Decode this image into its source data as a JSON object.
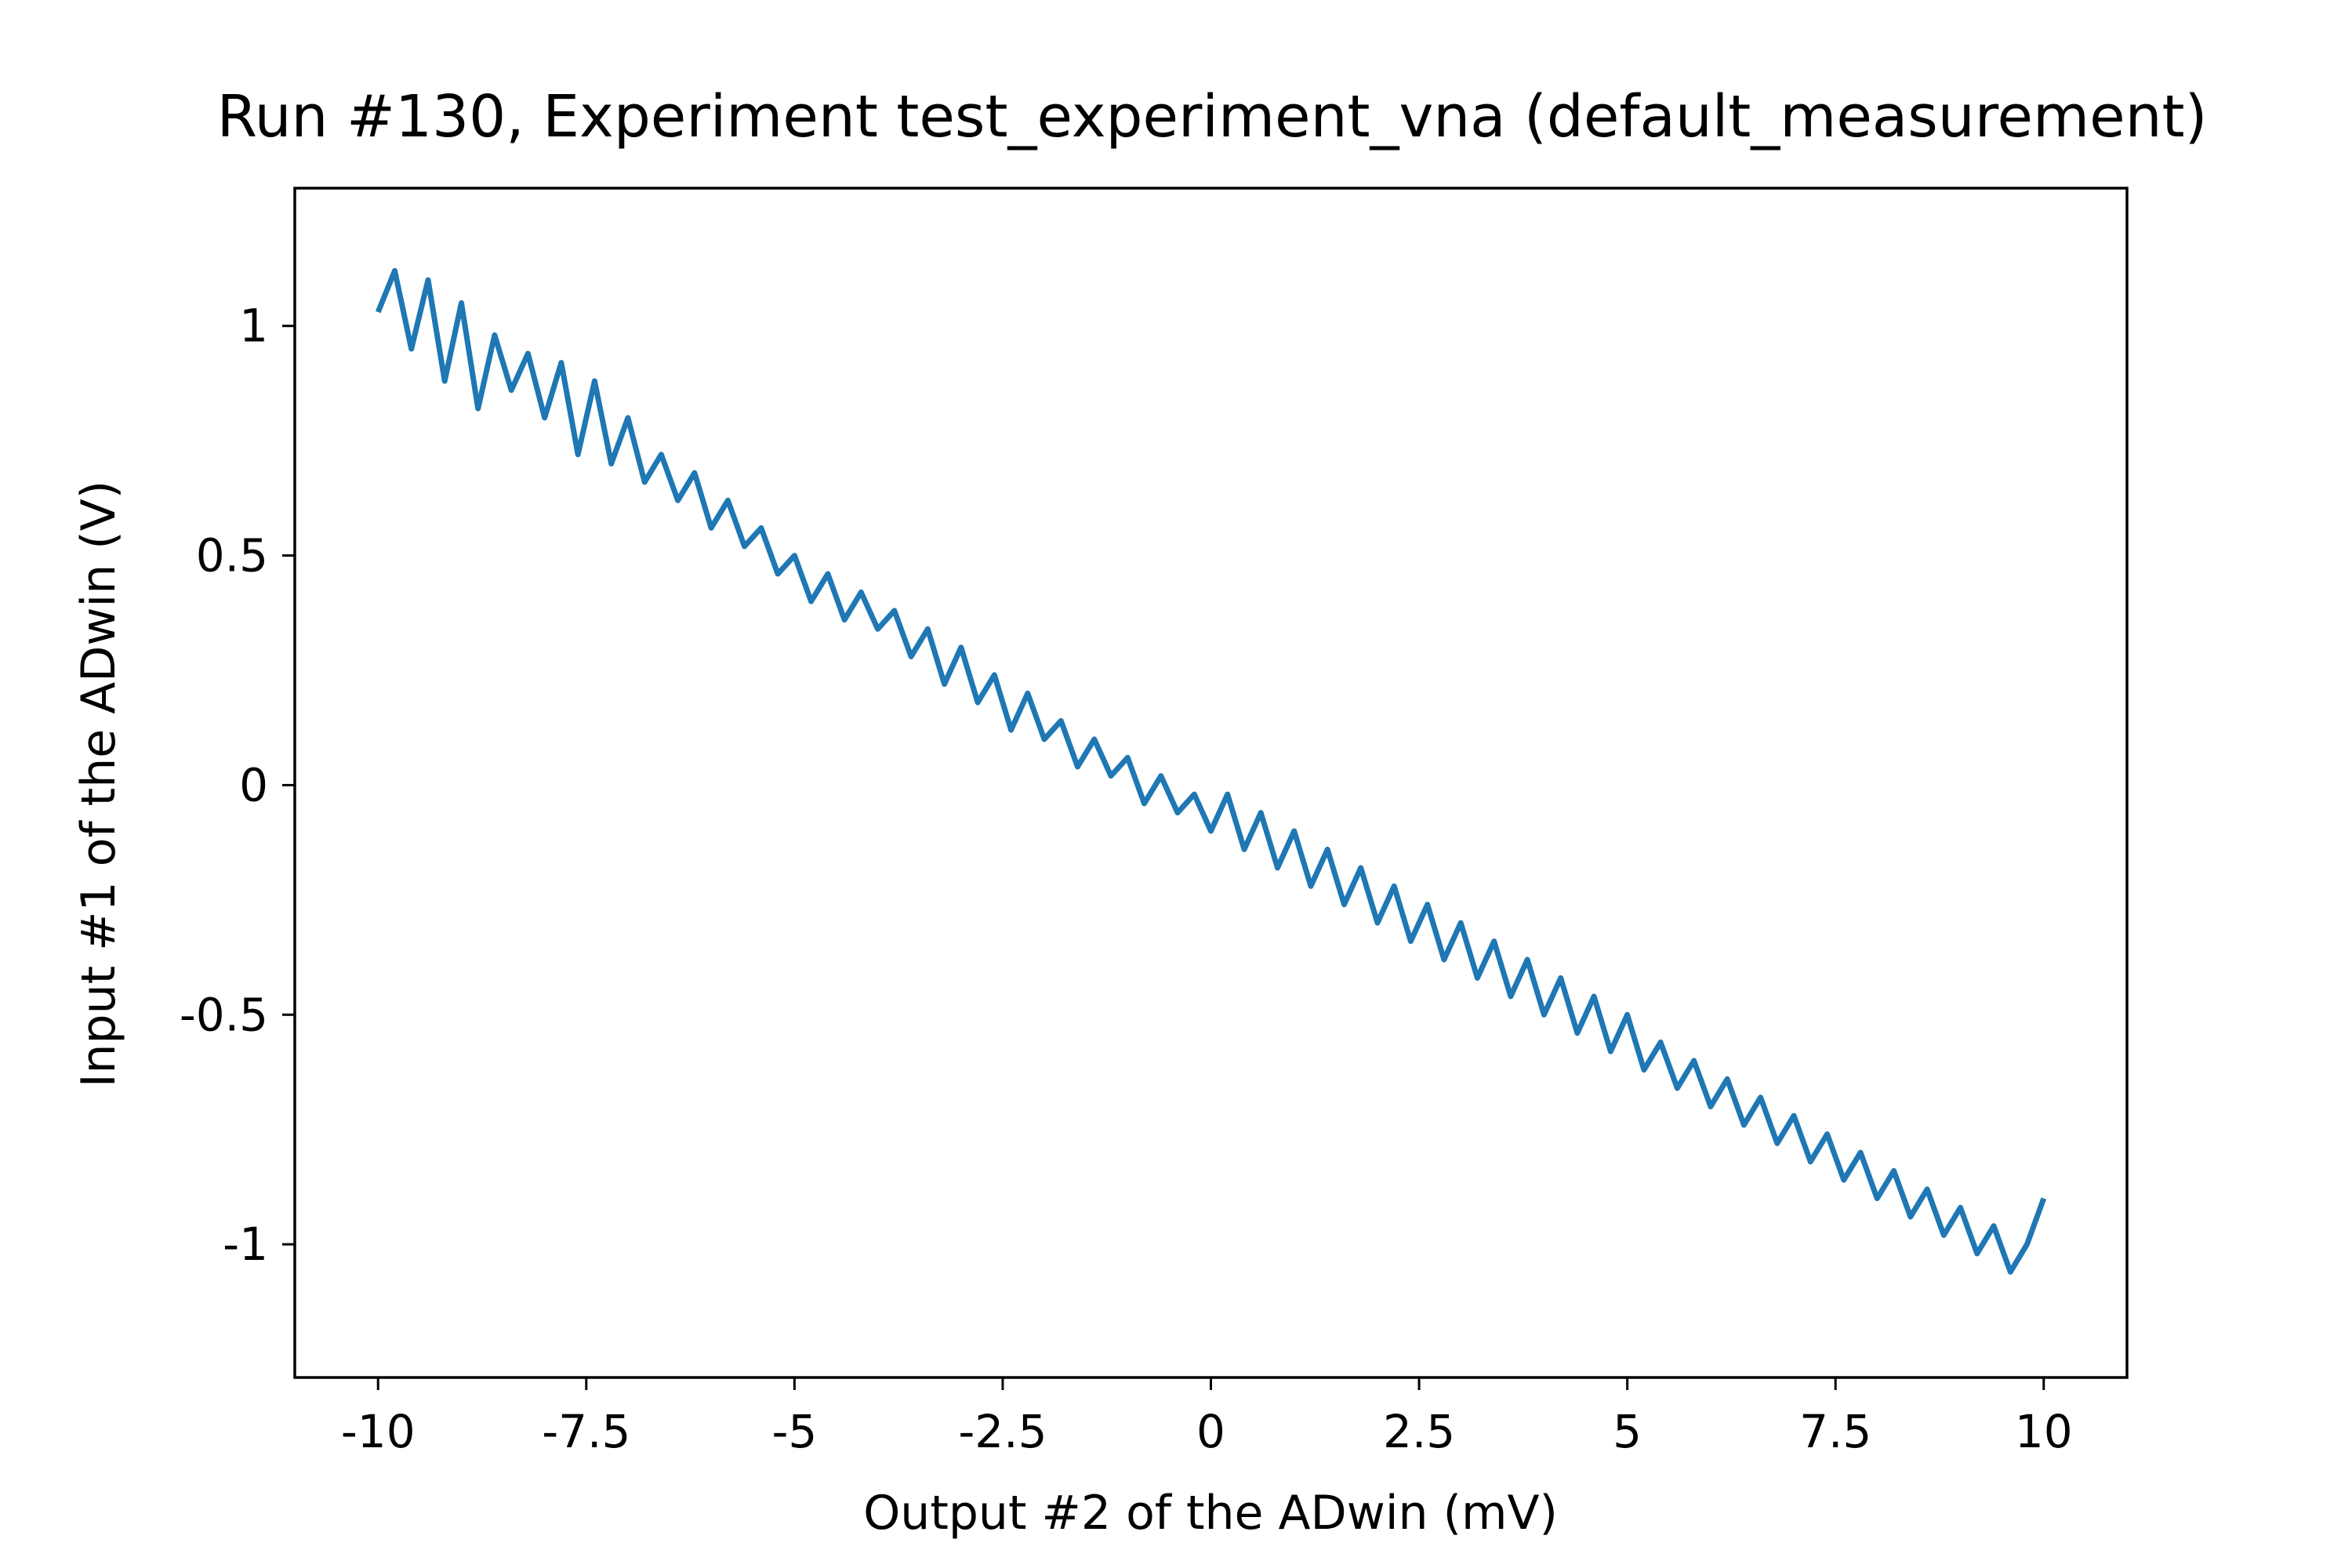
{
  "chart_data": {
    "type": "line",
    "title": "Run #130, Experiment test_experiment_vna (default_measurement)",
    "xlabel": "Output #2 of the ADwin (mV)",
    "ylabel": "Input #1 of the ADwin (V)",
    "xlim": [
      -11.0,
      11.0
    ],
    "ylim": [
      -1.29,
      1.3
    ],
    "xticks": [
      {
        "value": -10,
        "label": "-10"
      },
      {
        "value": -7.5,
        "label": "-7.5"
      },
      {
        "value": -5,
        "label": "-5"
      },
      {
        "value": -2.5,
        "label": "-2.5"
      },
      {
        "value": 0,
        "label": "0"
      },
      {
        "value": 2.5,
        "label": "2.5"
      },
      {
        "value": 5,
        "label": "5"
      },
      {
        "value": 7.5,
        "label": "7.5"
      },
      {
        "value": 10,
        "label": "10"
      }
    ],
    "yticks": [
      {
        "value": 1,
        "label": "1"
      },
      {
        "value": 0.5,
        "label": "0.5"
      },
      {
        "value": 0,
        "label": "0"
      },
      {
        "value": -0.5,
        "label": "-0.5"
      },
      {
        "value": -1,
        "label": "-1"
      }
    ],
    "grid": false,
    "legend": "none",
    "series": [
      {
        "color": "#1f77b4",
        "x": [
          -10.0,
          -9.8,
          -9.6,
          -9.4,
          -9.2,
          -9.0,
          -8.8,
          -8.6,
          -8.4,
          -8.2,
          -8.0,
          -7.8,
          -7.6,
          -7.4,
          -7.2,
          -7.0,
          -6.8,
          -6.6,
          -6.4,
          -6.2,
          -6.0,
          -5.8,
          -5.6,
          -5.4,
          -5.2,
          -5.0,
          -4.8,
          -4.6,
          -4.4,
          -4.2,
          -4.0,
          -3.8,
          -3.6,
          -3.4,
          -3.2,
          -3.0,
          -2.8,
          -2.6,
          -2.4,
          -2.2,
          -2.0,
          -1.8,
          -1.6,
          -1.4,
          -1.2,
          -1.0,
          -0.8,
          -0.6,
          -0.4,
          -0.2,
          0.0,
          0.2,
          0.4,
          0.6,
          0.8,
          1.0,
          1.2,
          1.4,
          1.6,
          1.8,
          2.0,
          2.2,
          2.4,
          2.6,
          2.8,
          3.0,
          3.2,
          3.4,
          3.6,
          3.8,
          4.0,
          4.2,
          4.4,
          4.6,
          4.8,
          5.0,
          5.2,
          5.4,
          5.6,
          5.8,
          6.0,
          6.2,
          6.4,
          6.6,
          6.8,
          7.0,
          7.2,
          7.4,
          7.6,
          7.8,
          8.0,
          8.2,
          8.4,
          8.6,
          8.8,
          9.0,
          9.2,
          9.4,
          9.6,
          9.8,
          10.0
        ],
        "y": [
          1.03,
          1.12,
          0.95,
          1.1,
          0.88,
          1.05,
          0.82,
          0.98,
          0.86,
          0.94,
          0.8,
          0.92,
          0.72,
          0.88,
          0.7,
          0.8,
          0.66,
          0.72,
          0.62,
          0.68,
          0.56,
          0.62,
          0.52,
          0.56,
          0.46,
          0.5,
          0.4,
          0.46,
          0.36,
          0.42,
          0.34,
          0.38,
          0.28,
          0.34,
          0.22,
          0.3,
          0.18,
          0.24,
          0.12,
          0.2,
          0.1,
          0.14,
          0.04,
          0.1,
          0.02,
          0.06,
          -0.04,
          0.02,
          -0.06,
          -0.02,
          -0.1,
          -0.02,
          -0.14,
          -0.06,
          -0.18,
          -0.1,
          -0.22,
          -0.14,
          -0.26,
          -0.18,
          -0.3,
          -0.22,
          -0.34,
          -0.26,
          -0.38,
          -0.3,
          -0.42,
          -0.34,
          -0.46,
          -0.38,
          -0.5,
          -0.42,
          -0.54,
          -0.46,
          -0.58,
          -0.5,
          -0.62,
          -0.56,
          -0.66,
          -0.6,
          -0.7,
          -0.64,
          -0.74,
          -0.68,
          -0.78,
          -0.72,
          -0.82,
          -0.76,
          -0.86,
          -0.8,
          -0.9,
          -0.84,
          -0.94,
          -0.88,
          -0.98,
          -0.92,
          -1.02,
          -0.96,
          -1.06,
          -1.0,
          -0.9
        ]
      }
    ]
  }
}
